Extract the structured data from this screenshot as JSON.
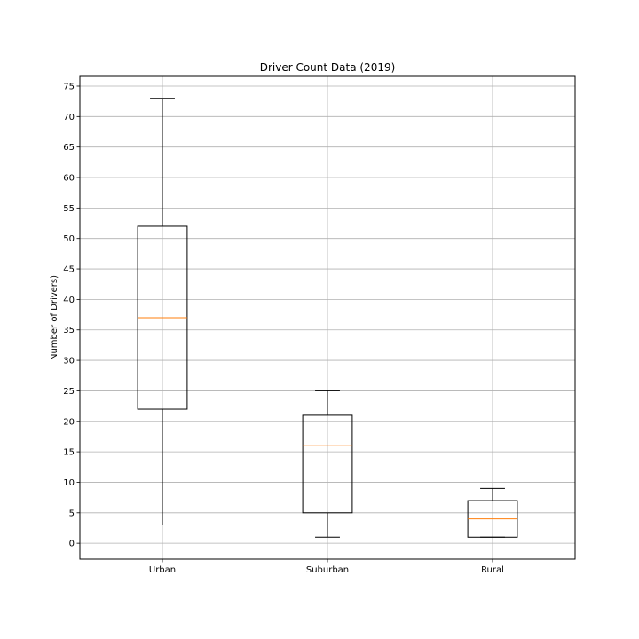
{
  "chart_data": {
    "type": "box",
    "title": "Driver Count Data (2019)",
    "xlabel": "",
    "ylabel": "Number of Drivers)",
    "categories": [
      "Urban",
      "Suburban",
      "Rural"
    ],
    "boxes": [
      {
        "category": "Urban",
        "whisker_low": 3,
        "q1": 22,
        "median": 37,
        "q3": 52,
        "whisker_high": 73
      },
      {
        "category": "Suburban",
        "whisker_low": 1,
        "q1": 5,
        "median": 16,
        "q3": 21,
        "whisker_high": 25
      },
      {
        "category": "Rural",
        "whisker_low": 1,
        "q1": 1,
        "median": 4,
        "q3": 7,
        "whisker_high": 9
      }
    ],
    "ylim": [
      -2.6,
      76.6
    ],
    "yticks": [
      0,
      5,
      10,
      15,
      20,
      25,
      30,
      35,
      40,
      45,
      50,
      55,
      60,
      65,
      70,
      75
    ],
    "grid": true,
    "legend": "none",
    "colors": {
      "box": "#000000",
      "median": "#ff7f0e",
      "grid": "#b0b0b0"
    }
  }
}
